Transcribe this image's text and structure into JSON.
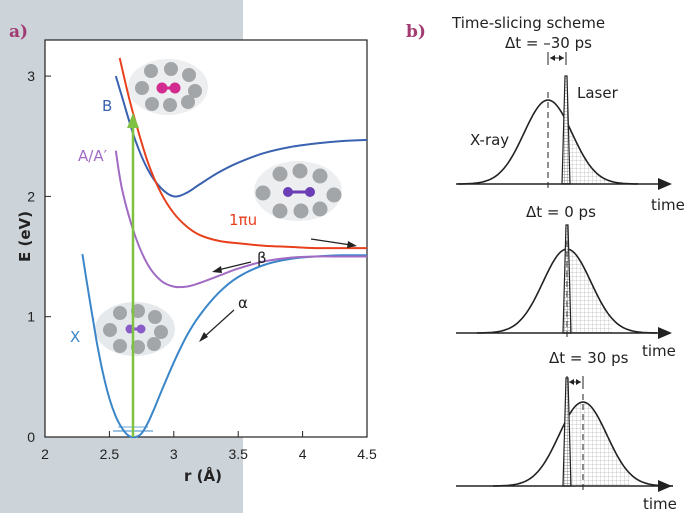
{
  "panel_a": {
    "label": "a)",
    "colors": {
      "background_band": "#ccd4da",
      "plot_bg": "#ffffff",
      "X": "#3a86c8",
      "AA": "#a16bc4",
      "B": "#3b62b0",
      "pi": "#e8401d",
      "arrow": "#7fc241",
      "molecule_gray": "#a3a6a8",
      "molecule_pink": "#d32c91",
      "molecule_purple": "#6a3fb5"
    },
    "icons": [
      "molecule-cage-pink-icon",
      "molecule-cage-purple-stretched-icon",
      "molecule-cage-purple-icon",
      "excitation-arrow-icon"
    ]
  },
  "panel_b": {
    "label": "b)",
    "title": "Time-slicing scheme",
    "rows": [
      {
        "dt_label": "Δt = –30 ps",
        "time_label": "time",
        "xray_label": "X-ray",
        "laser_label": "Laser",
        "xray_offset_ps": -30
      },
      {
        "dt_label": "Δt = 0 ps",
        "time_label": "time",
        "xray_offset_ps": 0
      },
      {
        "dt_label": "Δt = 30 ps",
        "time_label": "time",
        "xray_offset_ps": 30
      }
    ]
  },
  "chart_data": {
    "type": "line",
    "xlabel": "r (Å)",
    "ylabel": "E (eV)",
    "xlim": [
      2,
      4.5
    ],
    "ylim": [
      0,
      3.3
    ],
    "xticks": [
      "2",
      "2.5",
      "3",
      "3.5",
      "4",
      "4.5"
    ],
    "yticks": [
      "0",
      "1",
      "2",
      "3"
    ],
    "series": [
      {
        "name": "X",
        "color": "#3a86c8",
        "x": [
          2.29,
          2.35,
          2.4,
          2.45,
          2.5,
          2.55,
          2.6,
          2.65,
          2.7,
          2.75,
          2.8,
          2.85,
          2.9,
          3.0,
          3.1,
          3.2,
          3.35,
          3.5,
          3.7,
          3.9,
          4.1,
          4.3,
          4.5
        ],
        "y": [
          1.52,
          1.12,
          0.8,
          0.53,
          0.32,
          0.17,
          0.07,
          0.01,
          0.0,
          0.03,
          0.12,
          0.24,
          0.37,
          0.62,
          0.84,
          1.01,
          1.2,
          1.33,
          1.43,
          1.48,
          1.5,
          1.51,
          1.51
        ]
      },
      {
        "name": "A/A′",
        "color": "#a16bc4",
        "x": [
          2.55,
          2.6,
          2.7,
          2.8,
          2.9,
          3.0,
          3.1,
          3.2,
          3.35,
          3.5,
          3.7,
          3.9,
          4.1,
          4.3,
          4.5
        ],
        "y": [
          2.38,
          2.05,
          1.67,
          1.43,
          1.3,
          1.25,
          1.25,
          1.28,
          1.34,
          1.4,
          1.46,
          1.49,
          1.5,
          1.5,
          1.5
        ]
      },
      {
        "name": "B",
        "color": "#3b62b0",
        "x": [
          2.55,
          2.6,
          2.7,
          2.8,
          2.9,
          3.0,
          3.1,
          3.2,
          3.35,
          3.5,
          3.7,
          3.9,
          4.1,
          4.3,
          4.5
        ],
        "y": [
          3.0,
          2.82,
          2.47,
          2.22,
          2.07,
          2.0,
          2.03,
          2.1,
          2.2,
          2.28,
          2.36,
          2.41,
          2.44,
          2.46,
          2.47
        ]
      },
      {
        "name": "1πu",
        "color": "#e8401d",
        "x": [
          2.58,
          2.65,
          2.7,
          2.8,
          2.9,
          3.0,
          3.1,
          3.2,
          3.35,
          3.5,
          3.7,
          3.9,
          4.1,
          4.3,
          4.5
        ],
        "y": [
          3.15,
          2.83,
          2.63,
          2.28,
          2.03,
          1.86,
          1.75,
          1.68,
          1.63,
          1.61,
          1.59,
          1.58,
          1.57,
          1.57,
          1.57
        ]
      }
    ],
    "annotations": [
      "α",
      "β"
    ],
    "grid": false
  }
}
